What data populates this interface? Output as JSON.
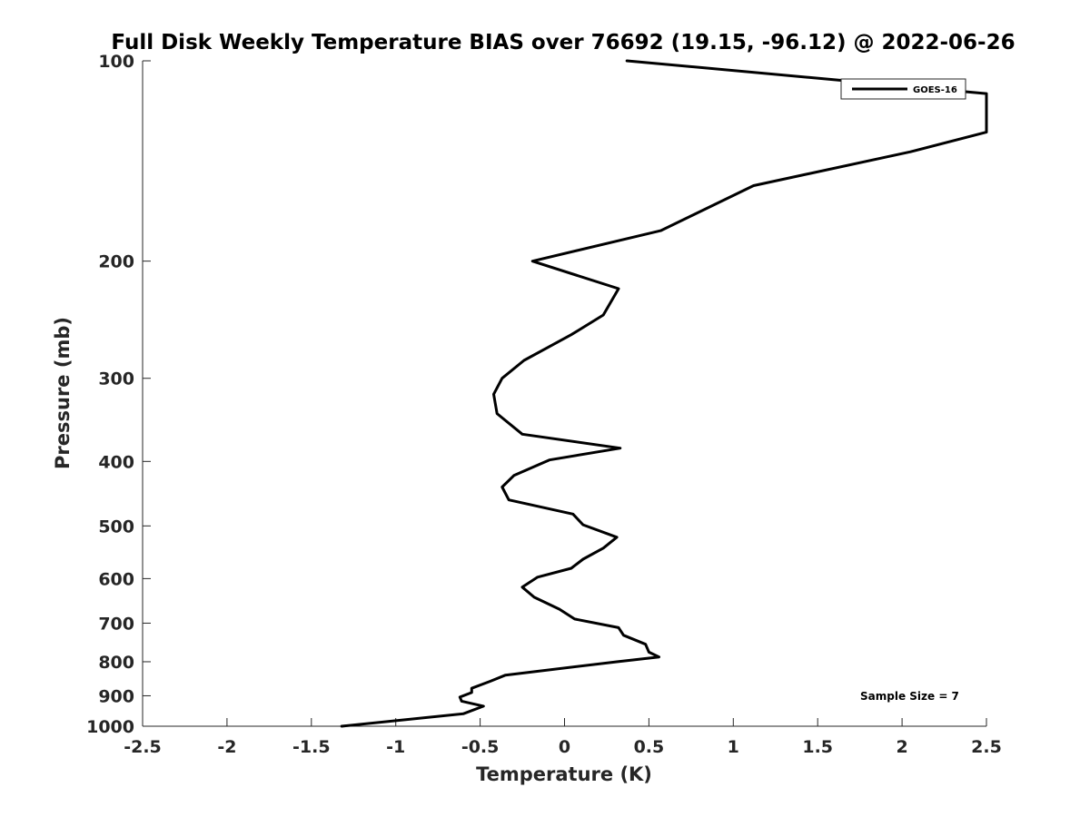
{
  "chart_data": {
    "type": "line",
    "title": "Full Disk Weekly Temperature BIAS over 76692 (19.15, -96.12) @ 2022-06-26",
    "xlabel": "Temperature (K)",
    "ylabel": "Pressure (mb)",
    "xlim": [
      -2.5,
      2.5
    ],
    "ylim": [
      100,
      1000
    ],
    "y_scale": "log",
    "y_reversed": true,
    "grid": false,
    "x_ticks": [
      -2.5,
      -2,
      -1.5,
      -1,
      -0.5,
      0,
      0.5,
      1,
      1.5,
      2,
      2.5
    ],
    "x_tick_labels": [
      "-2.5",
      "-2",
      "-1.5",
      "-1",
      "-0.5",
      "0",
      "0.5",
      "1",
      "1.5",
      "2",
      "2.5"
    ],
    "y_ticks": [
      100,
      200,
      300,
      400,
      500,
      600,
      700,
      800,
      900,
      1000
    ],
    "y_tick_labels": [
      "100",
      "200",
      "300",
      "400",
      "500",
      "600",
      "700",
      "800",
      "900",
      "1000"
    ],
    "legend": {
      "position": "top-right",
      "entries": [
        "GOES-16"
      ]
    },
    "annotations": [
      {
        "text": "Sample Size = 7",
        "position": "bottom-right"
      }
    ],
    "series": [
      {
        "name": "GOES-16",
        "color": "#000000",
        "x": [
          0.37,
          2.5,
          2.5,
          2.05,
          1.12,
          0.57,
          -0.19,
          0.32,
          0.23,
          0.04,
          -0.24,
          -0.37,
          -0.42,
          -0.4,
          -0.25,
          0.33,
          -0.09,
          -0.3,
          -0.37,
          -0.33,
          0.05,
          0.11,
          0.31,
          0.23,
          0.11,
          0.04,
          -0.16,
          -0.25,
          -0.18,
          -0.03,
          0.06,
          0.32,
          0.35,
          0.48,
          0.5,
          0.56,
          0.31,
          -0.35,
          -0.44,
          -0.55,
          -0.55,
          -0.62,
          -0.61,
          -0.48,
          -0.6,
          -1.32
        ],
        "y": [
          100,
          112,
          128,
          137,
          154,
          180,
          200,
          220,
          241,
          258,
          282,
          300,
          317,
          339,
          364,
          382,
          398,
          420,
          437,
          457,
          480,
          498,
          520,
          540,
          561,
          579,
          597,
          618,
          640,
          667,
          690,
          711,
          730,
          753,
          774,
          787,
          800,
          838,
          856,
          877,
          890,
          904,
          917,
          933,
          958,
          1000
        ]
      }
    ]
  }
}
